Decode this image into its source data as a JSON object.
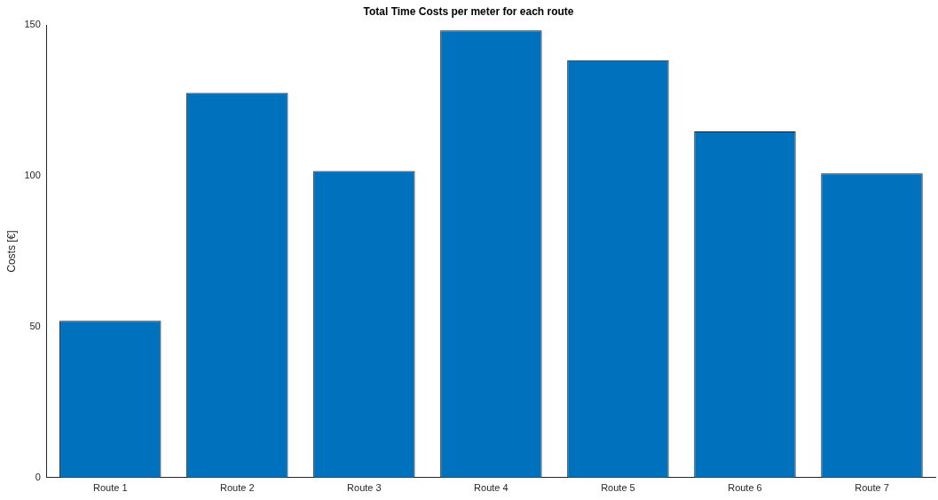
{
  "chart_data": {
    "type": "bar",
    "title": "Total Time Costs per meter for each route",
    "ylabel": "Costs [€]",
    "categories": [
      "Route 1",
      "Route 2",
      "Route 3",
      "Route 4",
      "Route 5",
      "Route 6",
      "Route 7"
    ],
    "values": [
      52,
      127.6,
      101.7,
      148.3,
      138.4,
      114.8,
      100.9
    ],
    "color": "#0072bd",
    "ylim": [
      0,
      150
    ],
    "yticks": [
      0,
      50,
      100,
      150
    ],
    "grid": false,
    "legend": false
  }
}
